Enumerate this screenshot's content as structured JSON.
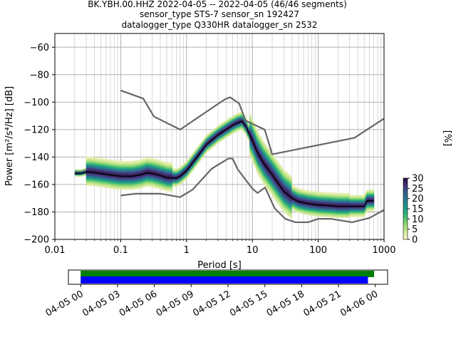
{
  "figure": {
    "title_lines": [
      "BK.YBH.00.HHZ   2022-04-05 -- 2022-04-05  (46/46 segments)",
      "sensor_type STS-7 sensor_sn 192427",
      "datalogger_type Q330HR datalogger_sn 2532"
    ]
  },
  "chart_data": [
    {
      "type": "heatmap",
      "title": "BK.YBH.00.HHZ   2022-04-05 -- 2022-04-05  (46/46 segments)",
      "xlabel": "Period [s]",
      "ylabel": "Power [m²/s⁴/Hz] [dB]",
      "x_scale": "log",
      "xlim": [
        0.01,
        1000
      ],
      "ylim": [
        -200,
        -50
      ],
      "x_ticks": [
        0.01,
        0.1,
        1,
        10,
        100,
        1000
      ],
      "x_tick_labels": [
        "0.01",
        "0.1",
        "1",
        "10",
        "100",
        "1000"
      ],
      "y_ticks": [
        -200,
        -180,
        -160,
        -140,
        -120,
        -100,
        -80,
        -60
      ],
      "y_tick_labels": [
        "−200",
        "−180",
        "−160",
        "−140",
        "−120",
        "−100",
        "−80",
        "−60"
      ],
      "grid": true,
      "colormap": "viridis_r",
      "colorbar": {
        "label": "[%]",
        "range": [
          0,
          30
        ],
        "ticks": [
          0,
          5,
          10,
          15,
          20,
          25,
          30
        ],
        "tick_labels": [
          "0",
          "5",
          "10",
          "15",
          "20",
          "25",
          "30"
        ]
      },
      "series": [
        {
          "role": "noise_model_high",
          "color": "#666666",
          "x": [
            0.1,
            0.22,
            0.32,
            0.8,
            3.8,
            4.6,
            6.3,
            7.9,
            15.4,
            20,
            354.8,
            1000
          ],
          "y": [
            -91.5,
            -97.4,
            -110.5,
            -120,
            -98,
            -96.5,
            -101,
            -113.5,
            -120,
            -138,
            -126,
            -112
          ]
        },
        {
          "role": "noise_model_low",
          "color": "#666666",
          "x": [
            0.1,
            0.17,
            0.4,
            0.8,
            1.24,
            2.4,
            4.3,
            5,
            6,
            10,
            12,
            15.6,
            21.9,
            31.6,
            45,
            70,
            101,
            154,
            328,
            600,
            1000
          ],
          "y": [
            -168,
            -166.7,
            -166.7,
            -169.2,
            -163.7,
            -148.6,
            -141.1,
            -141.1,
            -149,
            -163,
            -166.2,
            -162.1,
            -177.5,
            -185,
            -187.5,
            -187.5,
            -185,
            -185,
            -187.5,
            -184.4,
            -178.5
          ]
        },
        {
          "role": "mean",
          "color": "#000000",
          "x": [
            0.02,
            0.025,
            0.03,
            0.035,
            0.05,
            0.08,
            0.1,
            0.15,
            0.2,
            0.25,
            0.3,
            0.4,
            0.5,
            0.7,
            0.8,
            1.0,
            1.5,
            2,
            3,
            4,
            5,
            6,
            7,
            8,
            10,
            12,
            15,
            20,
            30,
            40,
            50,
            70,
            100,
            150,
            200,
            300,
            400,
            500,
            550,
            600,
            700
          ],
          "y": [
            -152,
            -152,
            -151,
            -151,
            -152,
            -153.5,
            -154,
            -154,
            -153,
            -151.5,
            -152,
            -153.5,
            -155,
            -155.5,
            -154,
            -150,
            -139,
            -131,
            -124,
            -120,
            -117,
            -115,
            -114,
            -118,
            -128,
            -137,
            -145,
            -153,
            -165,
            -170,
            -172.5,
            -174,
            -175,
            -175.5,
            -176,
            -176,
            -176,
            -176,
            -172,
            -172,
            -172
          ]
        }
      ],
      "timeline": {
        "start_label": "04-05 00",
        "tick_labels": [
          "04-05 00",
          "04-05 03",
          "04-05 06",
          "04-05 09",
          "04-05 12",
          "04-05 15",
          "04-05 18",
          "04-05 21",
          "04-06 00"
        ],
        "xlim_hours": [
          -1,
          25
        ],
        "bars": [
          {
            "role": "data_coverage",
            "color": "#008000",
            "start_h": 0,
            "end_h": 23.9
          },
          {
            "role": "psd_segments",
            "color": "#0000ff",
            "start_h": 0,
            "end_h": 23.4
          }
        ]
      }
    }
  ]
}
